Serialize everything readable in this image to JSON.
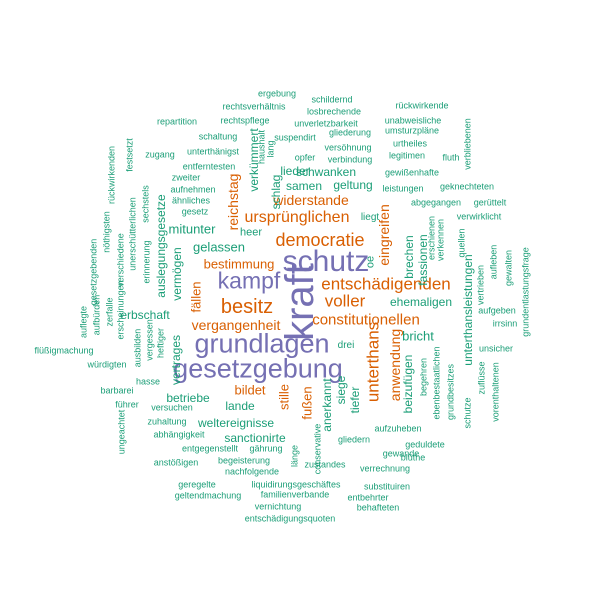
{
  "colors": {
    "green": "#1b9e77",
    "orange": "#d95f02",
    "purple": "#7570b3"
  },
  "words": [
    {
      "t": "kraft",
      "c": "purple"
    },
    {
      "t": "schutz",
      "c": "purple"
    },
    {
      "t": "gesetzgebung",
      "c": "purple"
    },
    {
      "t": "grundlagen",
      "c": "purple"
    },
    {
      "t": "kampf",
      "c": "purple"
    },
    {
      "t": "democratie",
      "c": "orange"
    },
    {
      "t": "entschädigenden",
      "c": "orange"
    },
    {
      "t": "besitz",
      "c": "orange"
    },
    {
      "t": "unterthans",
      "c": "orange"
    },
    {
      "t": "constitutionellen",
      "c": "orange"
    },
    {
      "t": "ursprünglichen",
      "c": "orange"
    },
    {
      "t": "voller",
      "c": "orange"
    },
    {
      "t": "vergangenheit",
      "c": "orange"
    },
    {
      "t": "anwendung",
      "c": "orange"
    },
    {
      "t": "widerstande",
      "c": "orange"
    },
    {
      "t": "bestimmung",
      "c": "orange"
    },
    {
      "t": "reichstag",
      "c": "orange"
    },
    {
      "t": "eingreifen",
      "c": "orange"
    },
    {
      "t": "fällen",
      "c": "orange"
    },
    {
      "t": "bildet",
      "c": "orange"
    },
    {
      "t": "fußen",
      "c": "orange"
    },
    {
      "t": "stille",
      "c": "orange"
    },
    {
      "t": "unterthansleistungen",
      "c": "green"
    },
    {
      "t": "gelassen",
      "c": "green"
    },
    {
      "t": "vermögen",
      "c": "green"
    },
    {
      "t": "ehemaligen",
      "c": "green"
    },
    {
      "t": "bricht",
      "c": "green"
    },
    {
      "t": "mitunter",
      "c": "green"
    },
    {
      "t": "schwanken",
      "c": "green"
    },
    {
      "t": "geltung",
      "c": "green"
    },
    {
      "t": "samen",
      "c": "green"
    },
    {
      "t": "lieder",
      "c": "green"
    },
    {
      "t": "weltereignisse",
      "c": "green"
    },
    {
      "t": "sanctionirte",
      "c": "green"
    },
    {
      "t": "betriebe",
      "c": "green"
    },
    {
      "t": "lande",
      "c": "green"
    },
    {
      "t": "vertrages",
      "c": "green"
    },
    {
      "t": "erbschaft",
      "c": "green"
    },
    {
      "t": "auslegungsgesetze",
      "c": "green"
    },
    {
      "t": "brechen",
      "c": "green"
    },
    {
      "t": "fassionen",
      "c": "green"
    },
    {
      "t": "beizufügen",
      "c": "green"
    },
    {
      "t": "anerkannt",
      "c": "green"
    },
    {
      "t": "tiefer",
      "c": "green"
    },
    {
      "t": "siege",
      "c": "green"
    },
    {
      "t": "verkümmert",
      "c": "green"
    },
    {
      "t": "schlag",
      "c": "green"
    },
    {
      "t": "heer",
      "c": "green"
    },
    {
      "t": "oe",
      "c": "green"
    },
    {
      "t": "drei",
      "c": "green"
    },
    {
      "t": "liegt",
      "c": "green"
    },
    {
      "t": "ergebung",
      "c": "green"
    },
    {
      "t": "rechtsverhältnis",
      "c": "green"
    },
    {
      "t": "schildernd",
      "c": "green"
    },
    {
      "t": "rückwirkende",
      "c": "green"
    },
    {
      "t": "losbrechende",
      "c": "green"
    },
    {
      "t": "repartition",
      "c": "green"
    },
    {
      "t": "rechtspflege",
      "c": "green"
    },
    {
      "t": "unverletzbarkeit",
      "c": "green"
    },
    {
      "t": "unabweisliche",
      "c": "green"
    },
    {
      "t": "haushalt",
      "c": "green"
    },
    {
      "t": "lang",
      "c": "green"
    },
    {
      "t": "suspendirt",
      "c": "green"
    },
    {
      "t": "gliederung",
      "c": "green"
    },
    {
      "t": "umsturzpläne",
      "c": "green"
    },
    {
      "t": "schaltung",
      "c": "green"
    },
    {
      "t": "versöhnung",
      "c": "green"
    },
    {
      "t": "urtheiles",
      "c": "green"
    },
    {
      "t": "verbliebenen",
      "c": "green"
    },
    {
      "t": "unterthänigst",
      "c": "green"
    },
    {
      "t": "opfer",
      "c": "green"
    },
    {
      "t": "verbindung",
      "c": "green"
    },
    {
      "t": "legitimen",
      "c": "green"
    },
    {
      "t": "fluth",
      "c": "green"
    },
    {
      "t": "zugang",
      "c": "green"
    },
    {
      "t": "entferntesten",
      "c": "green"
    },
    {
      "t": "gewißenhafte",
      "c": "green"
    },
    {
      "t": "rückwirkenden",
      "c": "green"
    },
    {
      "t": "festsetzt",
      "c": "green"
    },
    {
      "t": "zweiter",
      "c": "green"
    },
    {
      "t": "leistungen",
      "c": "green"
    },
    {
      "t": "geknechteten",
      "c": "green"
    },
    {
      "t": "aufnehmen",
      "c": "green"
    },
    {
      "t": "ähnliches",
      "c": "green"
    },
    {
      "t": "abgegangen",
      "c": "green"
    },
    {
      "t": "gerüttelt",
      "c": "green"
    },
    {
      "t": "gesetz",
      "c": "green"
    },
    {
      "t": "verwirklicht",
      "c": "green"
    },
    {
      "t": "sechstels",
      "c": "green"
    },
    {
      "t": "unerschütterlichen",
      "c": "green"
    },
    {
      "t": "nöthigsten",
      "c": "green"
    },
    {
      "t": "verschiedene",
      "c": "green"
    },
    {
      "t": "erinnerung",
      "c": "green"
    },
    {
      "t": "gesetzgebenden",
      "c": "green"
    },
    {
      "t": "aufbürden",
      "c": "green"
    },
    {
      "t": "zerfalle",
      "c": "green"
    },
    {
      "t": "erscheinungen",
      "c": "green"
    },
    {
      "t": "quellen",
      "c": "green"
    },
    {
      "t": "verkennen",
      "c": "green"
    },
    {
      "t": "erschienen",
      "c": "green"
    },
    {
      "t": "aufleben",
      "c": "green"
    },
    {
      "t": "grundentlastungsfrage",
      "c": "green"
    },
    {
      "t": "gewalten",
      "c": "green"
    },
    {
      "t": "vertrieben",
      "c": "green"
    },
    {
      "t": "aufgeben",
      "c": "green"
    },
    {
      "t": "irrsinn",
      "c": "green"
    },
    {
      "t": "auflegte",
      "c": "green"
    },
    {
      "t": "ausbilden",
      "c": "green"
    },
    {
      "t": "vergessen",
      "c": "green"
    },
    {
      "t": "heftiger",
      "c": "green"
    },
    {
      "t": "unsicher",
      "c": "green"
    },
    {
      "t": "flüßigmachung",
      "c": "green"
    },
    {
      "t": "würdigten",
      "c": "green"
    },
    {
      "t": "hasse",
      "c": "green"
    },
    {
      "t": "barbarei",
      "c": "green"
    },
    {
      "t": "zuflüsse",
      "c": "green"
    },
    {
      "t": "vorenthaltenen",
      "c": "green"
    },
    {
      "t": "führer",
      "c": "green"
    },
    {
      "t": "versuchen",
      "c": "green"
    },
    {
      "t": "begehren",
      "c": "green"
    },
    {
      "t": "ebenbestaatlichen",
      "c": "green"
    },
    {
      "t": "grundbesitzes",
      "c": "green"
    },
    {
      "t": "schutze",
      "c": "green"
    },
    {
      "t": "ungeachtet",
      "c": "green"
    },
    {
      "t": "zuhaltung",
      "c": "green"
    },
    {
      "t": "abhängigkeit",
      "c": "green"
    },
    {
      "t": "entgegenstellt",
      "c": "green"
    },
    {
      "t": "aufzuheben",
      "c": "green"
    },
    {
      "t": "geduldete",
      "c": "green"
    },
    {
      "t": "gliedern",
      "c": "green"
    },
    {
      "t": "conservative",
      "c": "green"
    },
    {
      "t": "länge",
      "c": "green"
    },
    {
      "t": "gewande",
      "c": "green"
    },
    {
      "t": "anstößigen",
      "c": "green"
    },
    {
      "t": "begeisterung",
      "c": "green"
    },
    {
      "t": "gährung",
      "c": "green"
    },
    {
      "t": "zustandes",
      "c": "green"
    },
    {
      "t": "blüthe",
      "c": "green"
    },
    {
      "t": "nachfolgende",
      "c": "green"
    },
    {
      "t": "verrechnung",
      "c": "green"
    },
    {
      "t": "geregelte",
      "c": "green"
    },
    {
      "t": "liquidirungsgeschäftes",
      "c": "green"
    },
    {
      "t": "substituiren",
      "c": "green"
    },
    {
      "t": "geltendmachung",
      "c": "green"
    },
    {
      "t": "familienverbande",
      "c": "green"
    },
    {
      "t": "entbehrter",
      "c": "green"
    },
    {
      "t": "vernichtung",
      "c": "green"
    },
    {
      "t": "behafteten",
      "c": "green"
    },
    {
      "t": "entschädigungsquoten",
      "c": "green"
    }
  ]
}
